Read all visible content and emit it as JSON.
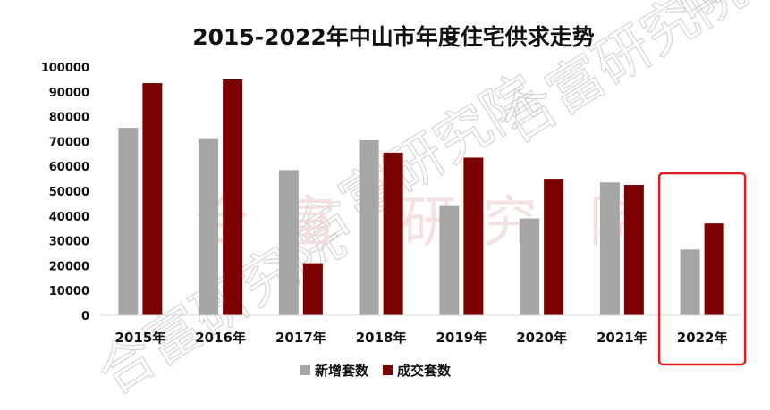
{
  "chart_data": {
    "type": "bar",
    "title": "2015-2022年中山市年度住宅供求走势",
    "categories": [
      "2015年",
      "2016年",
      "2017年",
      "2018年",
      "2019年",
      "2020年",
      "2021年",
      "2022年"
    ],
    "series": [
      {
        "name": "新增套数",
        "color": "#a6a6a6",
        "values": [
          75500,
          71000,
          58500,
          70500,
          44000,
          39000,
          53500,
          26500
        ]
      },
      {
        "name": "成交套数",
        "color": "#7b0000",
        "values": [
          93500,
          95000,
          21000,
          65500,
          63500,
          55000,
          52500,
          37000
        ]
      }
    ],
    "ylim": [
      0,
      100000
    ],
    "yticks": [
      "0",
      "10000",
      "20000",
      "30000",
      "40000",
      "50000",
      "60000",
      "70000",
      "80000",
      "90000",
      "100000"
    ],
    "grid": false,
    "legend": "bottom",
    "highlight": {
      "category": "2022年",
      "color": "#e31b1b"
    },
    "watermark": "合富研究院"
  }
}
